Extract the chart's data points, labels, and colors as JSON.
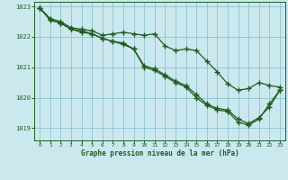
{
  "title": "Graphe pression niveau de la mer (hPa)",
  "background_color": "#cce8ef",
  "grid_color": "#8fc4cc",
  "line_color": "#1e5c1e",
  "xlim": [
    -0.5,
    23.5
  ],
  "ylim": [
    1018.6,
    1023.15
  ],
  "yticks": [
    1019,
    1020,
    1021,
    1022,
    1023
  ],
  "xticks": [
    0,
    1,
    2,
    3,
    4,
    5,
    6,
    7,
    8,
    9,
    10,
    11,
    12,
    13,
    14,
    15,
    16,
    17,
    18,
    19,
    20,
    21,
    22,
    23
  ],
  "series1_x": [
    0,
    1,
    2,
    3,
    4,
    5,
    6,
    7,
    8,
    9,
    10,
    11,
    12,
    13,
    14,
    15,
    16,
    17,
    18,
    19,
    20,
    21,
    22,
    23
  ],
  "series1_y": [
    1022.95,
    1022.6,
    1022.5,
    1022.3,
    1022.25,
    1022.2,
    1022.05,
    1022.1,
    1022.15,
    1022.1,
    1022.05,
    1022.1,
    1021.7,
    1021.55,
    1021.6,
    1021.55,
    1021.2,
    1020.85,
    1020.45,
    1020.25,
    1020.3,
    1020.5,
    1020.4,
    1020.35
  ],
  "series2_x": [
    0,
    1,
    2,
    3,
    4,
    5,
    6,
    7,
    8,
    9,
    10,
    11,
    12,
    13,
    14,
    15,
    16,
    17,
    18,
    19,
    20,
    21,
    22,
    23
  ],
  "series2_y": [
    1022.95,
    1022.55,
    1022.45,
    1022.25,
    1022.2,
    1022.1,
    1021.95,
    1021.85,
    1021.8,
    1021.6,
    1021.05,
    1020.95,
    1020.75,
    1020.55,
    1020.4,
    1020.1,
    1019.8,
    1019.65,
    1019.6,
    1019.3,
    1019.15,
    1019.35,
    1019.7,
    1020.25
  ],
  "series3_x": [
    0,
    1,
    2,
    3,
    4,
    5,
    6,
    7,
    8,
    9,
    10,
    11,
    12,
    13,
    14,
    15,
    16,
    17,
    18,
    19,
    20,
    21,
    22,
    23
  ],
  "series3_y": [
    1022.95,
    1022.55,
    1022.45,
    1022.25,
    1022.15,
    1022.1,
    1021.95,
    1021.85,
    1021.75,
    1021.6,
    1021.0,
    1020.9,
    1020.7,
    1020.5,
    1020.35,
    1020.0,
    1019.75,
    1019.6,
    1019.55,
    1019.2,
    1019.1,
    1019.3,
    1019.8,
    1020.25
  ]
}
